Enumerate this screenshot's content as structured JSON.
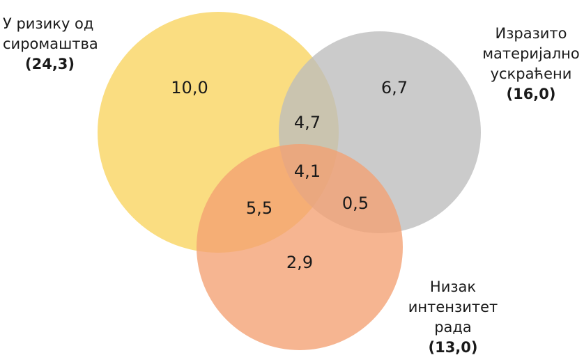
{
  "sets": [
    {
      "id": "poverty",
      "label_lines": [
        "У ризику од",
        "сиромаштва"
      ],
      "total": "(24,3)",
      "color": "#F9D45E"
    },
    {
      "id": "deprived",
      "label_lines": [
        "Изразито",
        "материјално",
        "ускраћени"
      ],
      "total": "(16,0)",
      "color": "#BDBDBD"
    },
    {
      "id": "work",
      "label_lines": [
        "Низак",
        "интензитет",
        "рада"
      ],
      "total": "(13,0)",
      "color": "#F3A072"
    }
  ],
  "regions": {
    "poverty_only": "10,0",
    "deprived_only": "6,7",
    "poverty_deprived": "4,7",
    "all_three": "4,1",
    "poverty_work": "5,5",
    "deprived_work": "0,5",
    "work_only": "2,9"
  }
}
